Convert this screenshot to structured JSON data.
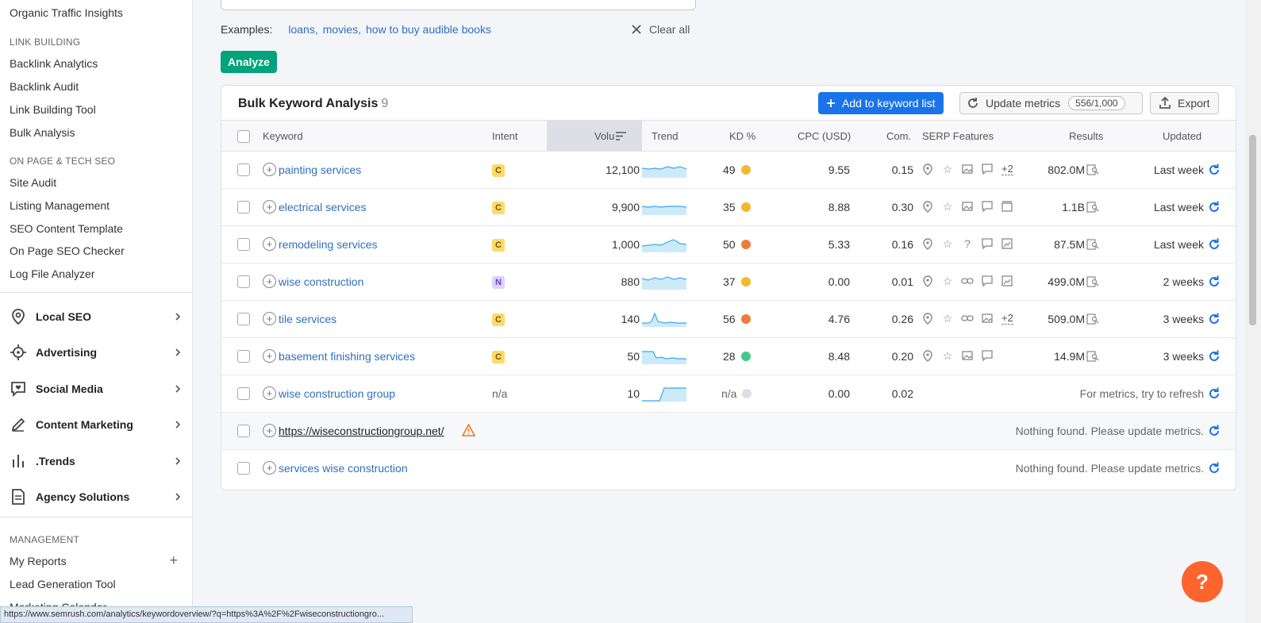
{
  "sidebar": {
    "top_item": "Organic Traffic Insights",
    "link_building": {
      "heading": "LINK BUILDING",
      "items": [
        "Backlink Analytics",
        "Backlink Audit",
        "Link Building Tool",
        "Bulk Analysis"
      ]
    },
    "on_page": {
      "heading": "ON PAGE & TECH SEO",
      "items": [
        "Site Audit",
        "Listing Management",
        "SEO Content Template",
        "On Page SEO Checker",
        "Log File Analyzer"
      ]
    },
    "groups": [
      {
        "label": "Local SEO",
        "icon": "location-pin-icon"
      },
      {
        "label": "Advertising",
        "icon": "target-icon"
      },
      {
        "label": "Social Media",
        "icon": "chat-heart-icon"
      },
      {
        "label": "Content Marketing",
        "icon": "pencil-icon"
      },
      {
        "label": ".Trends",
        "icon": "bar-chart-icon"
      },
      {
        "label": "Agency Solutions",
        "icon": "document-icon"
      }
    ],
    "management": {
      "heading": "MANAGEMENT",
      "items": [
        "My Reports",
        "Lead Generation Tool",
        "Marketing Calendar"
      ]
    }
  },
  "examples": {
    "label": "Examples:",
    "links": [
      "loans,",
      "movies,",
      "how to buy audible books"
    ],
    "clear_all": "Clear all"
  },
  "analyze_label": "Analyze",
  "panel": {
    "title": "Bulk Keyword Analysis",
    "count": "9",
    "add_to_list": "Add to keyword list",
    "update_metrics": "Update metrics",
    "quota": "556/1,000",
    "export": "Export"
  },
  "columns": {
    "keyword": "Keyword",
    "intent": "Intent",
    "volume": "Volu",
    "trend": "Trend",
    "kd": "KD %",
    "cpc": "CPC (USD)",
    "com": "Com.",
    "serp": "SERP Features",
    "results": "Results",
    "updated": "Updated"
  },
  "rows": [
    {
      "keyword": "painting services",
      "intent": "C",
      "volume": "12,100",
      "kd": "49",
      "kd_color": "#f5b82e",
      "cpc": "9.55",
      "com": "0.15",
      "serp_more": "+2",
      "results": "802.0M",
      "updated": "Last week"
    },
    {
      "keyword": "electrical services",
      "intent": "C",
      "volume": "9,900",
      "kd": "35",
      "kd_color": "#f5b82e",
      "cpc": "8.88",
      "com": "0.30",
      "serp_more": "",
      "results": "1.1B",
      "updated": "Last week"
    },
    {
      "keyword": "remodeling services",
      "intent": "C",
      "volume": "1,000",
      "kd": "50",
      "kd_color": "#f07b3f",
      "cpc": "5.33",
      "com": "0.16",
      "serp_more": "",
      "results": "87.5M",
      "updated": "Last week"
    },
    {
      "keyword": "wise construction",
      "intent": "N",
      "volume": "880",
      "kd": "37",
      "kd_color": "#f5b82e",
      "cpc": "0.00",
      "com": "0.01",
      "serp_more": "",
      "results": "499.0M",
      "updated": "2 weeks"
    },
    {
      "keyword": "tile services",
      "intent": "C",
      "volume": "140",
      "kd": "56",
      "kd_color": "#f07b3f",
      "cpc": "4.76",
      "com": "0.26",
      "serp_more": "+2",
      "results": "509.0M",
      "updated": "3 weeks"
    },
    {
      "keyword": "basement finishing services",
      "intent": "C",
      "volume": "50",
      "kd": "28",
      "kd_color": "#3fca8a",
      "cpc": "8.48",
      "com": "0.20",
      "serp_more": "",
      "results": "14.9M",
      "updated": "3 weeks"
    },
    {
      "keyword": "wise construction group",
      "intent": "n/a",
      "volume": "10",
      "kd": "n/a",
      "kd_color": "#dedee6",
      "cpc": "0.00",
      "com": "0.02",
      "note": "For metrics, try to refresh"
    },
    {
      "keyword": "https://wiseconstructiongroup.net/",
      "note": "Nothing found. Please update metrics."
    },
    {
      "keyword": "services wise construction",
      "note": "Nothing found. Please update metrics."
    }
  ],
  "status_url": "https://www.semrush.com/analytics/keywordoverview/?q=https%3A%2F%2Fwiseconstructiongro...",
  "help_label": "?",
  "colors": {
    "accent_green": "#00a37a",
    "accent_blue": "#1a73e8",
    "help_orange": "#ff642d",
    "link_blue": "#2f6fbf"
  }
}
